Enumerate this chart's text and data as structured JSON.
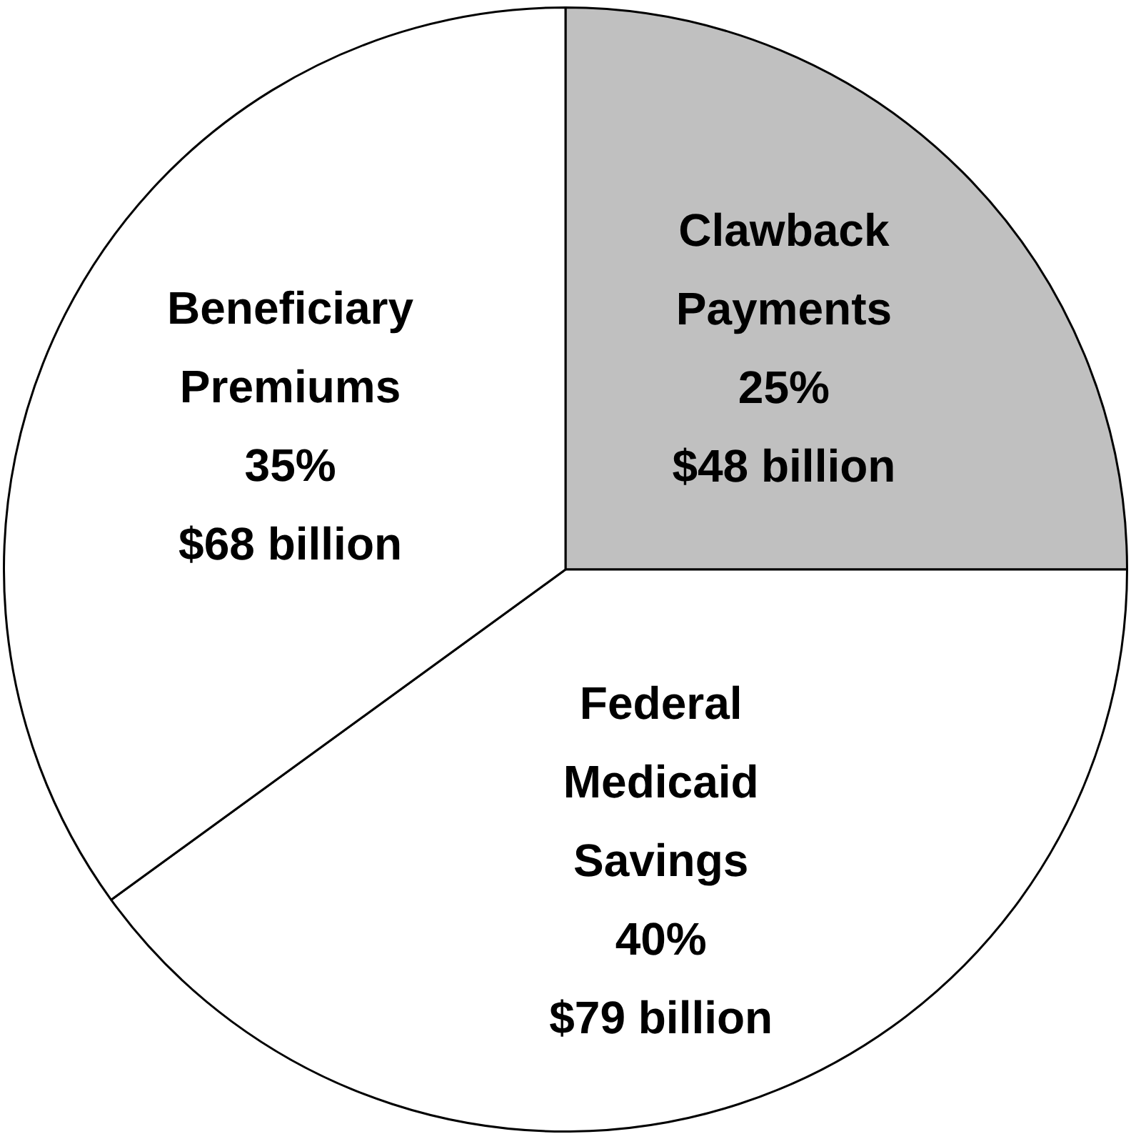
{
  "chart_data": {
    "type": "pie",
    "categories": [
      "Clawback Payments",
      "Federal Medicaid Savings",
      "Beneficiary Premiums"
    ],
    "values": [
      25,
      40,
      35
    ],
    "colors": [
      "#c0c0c0",
      "#ffffff",
      "#ffffff"
    ],
    "value_labels": [
      "25%\n$48 billion",
      "40%\n$79 billion",
      "35%\n$68 billion"
    ]
  }
}
